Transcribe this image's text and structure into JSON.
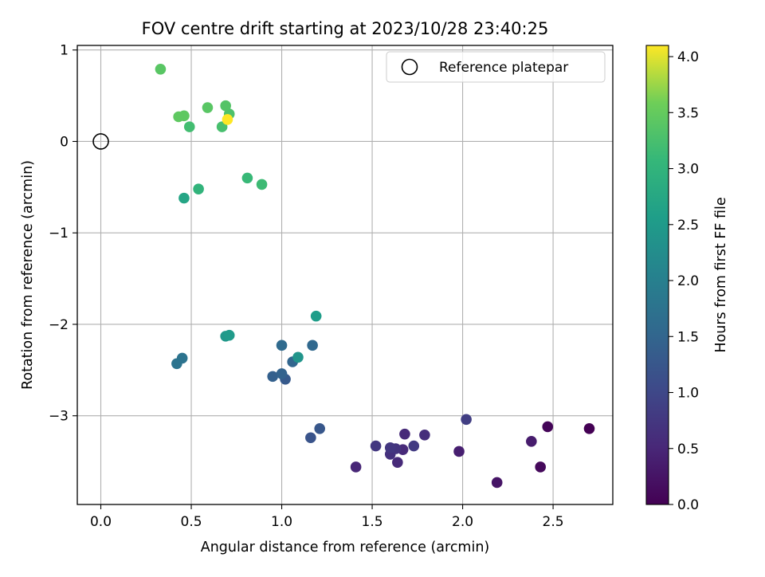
{
  "chart_data": {
    "type": "scatter",
    "title": "FOV centre drift starting at 2023/10/28 23:40:25",
    "xlabel": "Angular distance from reference (arcmin)",
    "ylabel": "Rotation from reference (arcmin)",
    "xlim": [
      -0.13,
      2.83
    ],
    "ylim": [
      -3.97,
      1.05
    ],
    "xticks": [
      0.0,
      0.5,
      1.0,
      1.5,
      2.0,
      2.5
    ],
    "xtick_labels": [
      "0.0",
      "0.5",
      "1.0",
      "1.5",
      "2.0",
      "2.5"
    ],
    "yticks": [
      1,
      0,
      -1,
      -2,
      -3
    ],
    "ytick_labels": [
      "1",
      "0",
      "−1",
      "−2",
      "−3"
    ],
    "grid": true,
    "legend": {
      "position": "top-right",
      "label": "Reference platepar"
    },
    "reference_point": {
      "x": 0.0,
      "y": 0.0
    },
    "colorbar": {
      "label": "Hours from first FF file",
      "colormap": "viridis",
      "range": [
        0.0,
        4.1
      ],
      "ticks": [
        0.0,
        0.5,
        1.0,
        1.5,
        2.0,
        2.5,
        3.0,
        3.5,
        4.0
      ],
      "tick_labels": [
        "0.0",
        "0.5",
        "1.0",
        "1.5",
        "2.0",
        "2.5",
        "3.0",
        "3.5",
        "4.0"
      ]
    },
    "points": [
      {
        "x": 2.7,
        "y": -3.14,
        "c": 0.0
      },
      {
        "x": 2.47,
        "y": -3.12,
        "c": 0.05
      },
      {
        "x": 2.43,
        "y": -3.56,
        "c": 0.1
      },
      {
        "x": 2.19,
        "y": -3.73,
        "c": 0.25
      },
      {
        "x": 2.38,
        "y": -3.28,
        "c": 0.35
      },
      {
        "x": 1.98,
        "y": -3.39,
        "c": 0.4
      },
      {
        "x": 1.41,
        "y": -3.56,
        "c": 0.5
      },
      {
        "x": 1.64,
        "y": -3.51,
        "c": 0.55
      },
      {
        "x": 1.67,
        "y": -3.37,
        "c": 0.55
      },
      {
        "x": 1.68,
        "y": -3.2,
        "c": 0.55
      },
      {
        "x": 1.79,
        "y": -3.21,
        "c": 0.6
      },
      {
        "x": 1.6,
        "y": -3.42,
        "c": 0.65
      },
      {
        "x": 1.63,
        "y": -3.36,
        "c": 0.7
      },
      {
        "x": 1.52,
        "y": -3.33,
        "c": 0.75
      },
      {
        "x": 1.6,
        "y": -3.35,
        "c": 0.75
      },
      {
        "x": 1.73,
        "y": -3.33,
        "c": 0.8
      },
      {
        "x": 2.02,
        "y": -3.04,
        "c": 0.85
      },
      {
        "x": 1.16,
        "y": -3.24,
        "c": 1.2
      },
      {
        "x": 1.21,
        "y": -3.14,
        "c": 1.25
      },
      {
        "x": 1.02,
        "y": -2.6,
        "c": 1.3
      },
      {
        "x": 0.95,
        "y": -2.57,
        "c": 1.4
      },
      {
        "x": 1.0,
        "y": -2.54,
        "c": 1.45
      },
      {
        "x": 1.06,
        "y": -2.41,
        "c": 1.5
      },
      {
        "x": 1.17,
        "y": -2.23,
        "c": 1.55
      },
      {
        "x": 1.0,
        "y": -2.23,
        "c": 1.6
      },
      {
        "x": 0.42,
        "y": -2.43,
        "c": 1.75
      },
      {
        "x": 0.45,
        "y": -2.37,
        "c": 1.75
      },
      {
        "x": 1.09,
        "y": -2.36,
        "c": 2.4
      },
      {
        "x": 0.69,
        "y": -2.13,
        "c": 2.45
      },
      {
        "x": 0.71,
        "y": -2.12,
        "c": 2.5
      },
      {
        "x": 1.19,
        "y": -1.91,
        "c": 2.55
      },
      {
        "x": 0.46,
        "y": -0.62,
        "c": 2.7
      },
      {
        "x": 0.54,
        "y": -0.52,
        "c": 3.0
      },
      {
        "x": 0.81,
        "y": -0.4,
        "c": 3.1
      },
      {
        "x": 0.89,
        "y": -0.47,
        "c": 3.15
      },
      {
        "x": 0.49,
        "y": 0.16,
        "c": 3.2
      },
      {
        "x": 0.67,
        "y": 0.16,
        "c": 3.25
      },
      {
        "x": 0.71,
        "y": 0.3,
        "c": 3.3
      },
      {
        "x": 0.69,
        "y": 0.39,
        "c": 3.35
      },
      {
        "x": 0.59,
        "y": 0.37,
        "c": 3.4
      },
      {
        "x": 0.46,
        "y": 0.28,
        "c": 3.45
      },
      {
        "x": 0.43,
        "y": 0.27,
        "c": 3.45
      },
      {
        "x": 0.33,
        "y": 0.79,
        "c": 3.4
      },
      {
        "x": 0.7,
        "y": 0.24,
        "c": 4.1
      }
    ]
  }
}
